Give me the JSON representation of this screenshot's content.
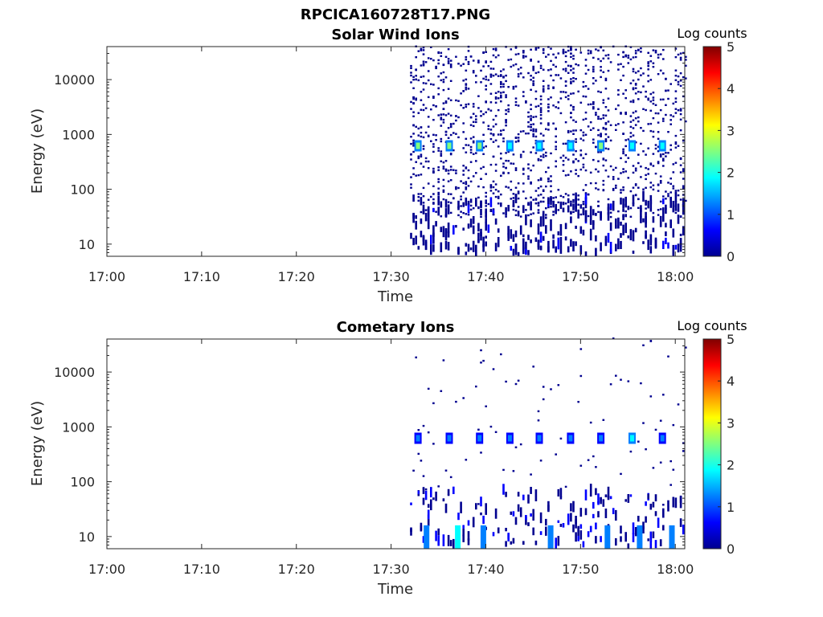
{
  "figure_title": "RPCICA160728T17.PNG",
  "colormap": [
    "#00008f",
    "#0000ff",
    "#0080ff",
    "#00ffff",
    "#80ff80",
    "#ffff00",
    "#ff8000",
    "#ff0000",
    "#800000"
  ],
  "chart_data": [
    {
      "type": "heatmap",
      "title": "Solar Wind Ions",
      "xlabel": "Time",
      "ylabel": "Energy (eV)",
      "y_scale": "log",
      "xlim": [
        "17:00",
        "18:01"
      ],
      "ylim": [
        6,
        40000
      ],
      "x_ticks": [
        "17:00",
        "17:10",
        "17:20",
        "17:30",
        "17:40",
        "17:50",
        "18:00"
      ],
      "y_ticks": [
        "10",
        "100",
        "1000",
        "10000"
      ],
      "colorbar": {
        "label": "Log counts",
        "min": 0,
        "max": 5,
        "ticks": [
          "0",
          "1",
          "2",
          "3",
          "4",
          "5"
        ]
      },
      "data_start": "17:32",
      "data_end": "18:01",
      "peaks": [
        {
          "time": "17:32.8",
          "energy": 620,
          "log_counts": 2.3
        },
        {
          "time": "17:36.1",
          "energy": 620,
          "log_counts": 2.2
        },
        {
          "time": "17:39.3",
          "energy": 620,
          "log_counts": 2.2
        },
        {
          "time": "17:42.5",
          "energy": 620,
          "log_counts": 2.0
        },
        {
          "time": "17:45.6",
          "energy": 620,
          "log_counts": 2.0
        },
        {
          "time": "17:48.9",
          "energy": 620,
          "log_counts": 2.1
        },
        {
          "time": "17:52.1",
          "energy": 620,
          "log_counts": 2.3
        },
        {
          "time": "17:55.4",
          "energy": 620,
          "log_counts": 2.0
        },
        {
          "time": "17:58.6",
          "energy": 620,
          "log_counts": 2.0
        }
      ],
      "background_energy_range": [
        10,
        40000
      ]
    },
    {
      "type": "heatmap",
      "title": "Cometary Ions",
      "xlabel": "Time",
      "ylabel": "Energy (eV)",
      "y_scale": "log",
      "xlim": [
        "17:00",
        "18:01"
      ],
      "ylim": [
        6,
        40000
      ],
      "x_ticks": [
        "17:00",
        "17:10",
        "17:20",
        "17:30",
        "17:40",
        "17:50",
        "18:00"
      ],
      "y_ticks": [
        "10",
        "100",
        "1000",
        "10000"
      ],
      "colorbar": {
        "label": "Log counts",
        "min": 0,
        "max": 5,
        "ticks": [
          "0",
          "1",
          "2",
          "3",
          "4",
          "5"
        ]
      },
      "data_start": "17:32",
      "data_end": "18:01",
      "peaks": [
        {
          "time": "17:32.8",
          "energy": 620,
          "log_counts": 1.2
        },
        {
          "time": "17:36.1",
          "energy": 620,
          "log_counts": 1.3
        },
        {
          "time": "17:39.3",
          "energy": 620,
          "log_counts": 1.0
        },
        {
          "time": "17:42.5",
          "energy": 620,
          "log_counts": 1.0
        },
        {
          "time": "17:45.6",
          "energy": 620,
          "log_counts": 1.5
        },
        {
          "time": "17:48.9",
          "energy": 620,
          "log_counts": 1.0
        },
        {
          "time": "17:52.1",
          "energy": 620,
          "log_counts": 1.0
        },
        {
          "time": "17:55.4",
          "energy": 620,
          "log_counts": 1.8
        },
        {
          "time": "17:58.6",
          "energy": 620,
          "log_counts": 1.0
        }
      ],
      "low_energy_bursts": [
        {
          "time": "17:33.7",
          "log_counts": 1.2
        },
        {
          "time": "17:37.0",
          "log_counts": 1.9
        },
        {
          "time": "17:39.7",
          "log_counts": 1.3
        },
        {
          "time": "17:46.8",
          "log_counts": 1.2
        },
        {
          "time": "17:52.8",
          "log_counts": 1.4
        },
        {
          "time": "17:56.2",
          "log_counts": 1.3
        },
        {
          "time": "17:59.6",
          "log_counts": 1.2
        }
      ],
      "background_energy_range": [
        10,
        40000
      ]
    }
  ]
}
